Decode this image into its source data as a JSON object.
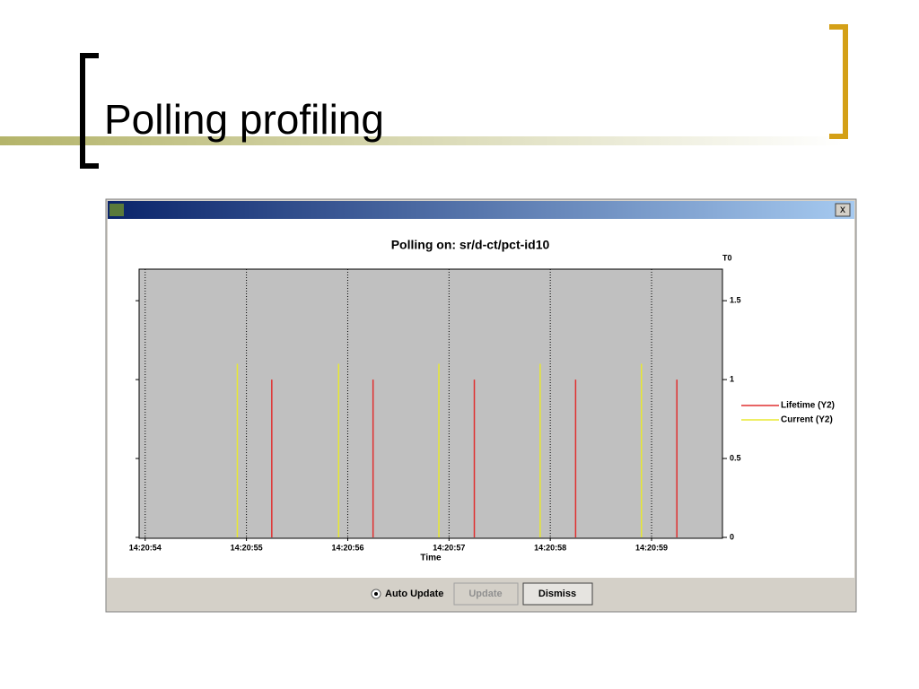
{
  "slide": {
    "title": "Polling profiling"
  },
  "window": {
    "close": "x",
    "auto_update": "Auto Update",
    "update": "Update",
    "dismiss": "Dismiss"
  },
  "chart_data": {
    "type": "impulse",
    "title": "Polling on:  sr/d-ct/pct-id10",
    "x_label": "Time",
    "y2_label": "T0",
    "xlim": [
      53.94,
      59.7
    ],
    "xticks": [
      {
        "value": 54,
        "label": "14:20:54"
      },
      {
        "value": 55,
        "label": "14:20:55"
      },
      {
        "value": 56,
        "label": "14:20:56"
      },
      {
        "value": 57,
        "label": "14:20:57"
      },
      {
        "value": 58,
        "label": "14:20:58"
      },
      {
        "value": 59,
        "label": "14:20:59"
      }
    ],
    "y2lim": [
      0,
      1.7
    ],
    "y2ticks": [
      0,
      0.5,
      1,
      1.5
    ],
    "grid": true,
    "series": [
      {
        "name": "Lifetime (Y2)",
        "color": "#e03030",
        "axis": "y2",
        "x": [
          55.25,
          56.25,
          57.25,
          58.25,
          59.25
        ],
        "values": [
          1,
          1,
          1,
          1,
          1
        ]
      },
      {
        "name": "Current (Y2)",
        "color": "#e8e830",
        "axis": "y2",
        "x": [
          54.91,
          55.91,
          56.9,
          57.9,
          58.9
        ],
        "values": [
          1.1,
          1.1,
          1.1,
          1.1,
          1.1
        ]
      }
    ]
  }
}
